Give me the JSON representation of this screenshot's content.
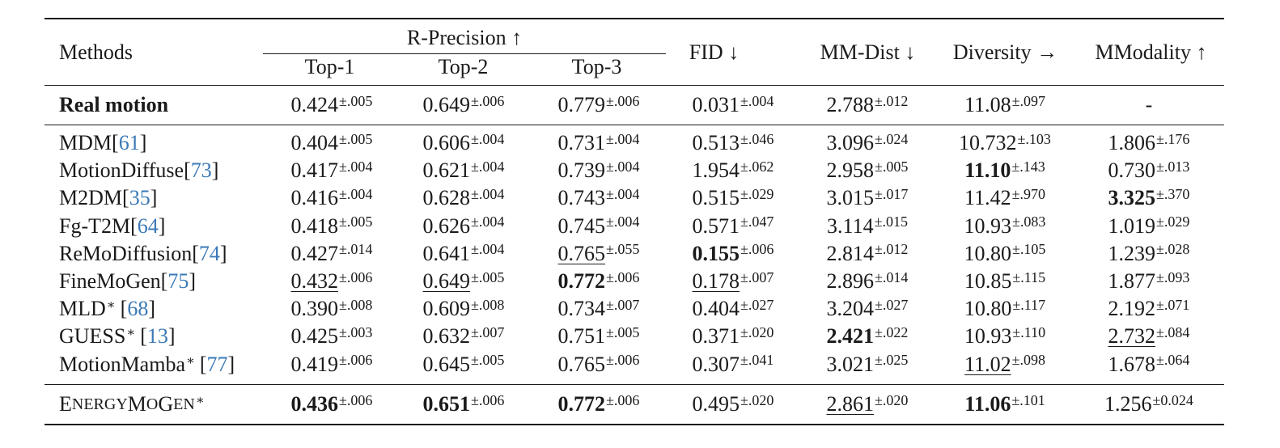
{
  "headers": {
    "methods": "Methods",
    "r_precision": "R-Precision ↑",
    "top1": "Top-1",
    "top2": "Top-2",
    "top3": "Top-3",
    "fid": "FID ↓",
    "mm_dist": "MM-Dist ↓",
    "diversity": "Diversity →",
    "mmodality": "MModality ↑"
  },
  "real_motion": {
    "name": "Real motion",
    "cells": [
      {
        "v": "0.424",
        "s": "±.005",
        "st": ""
      },
      {
        "v": "0.649",
        "s": "±.006",
        "st": ""
      },
      {
        "v": "0.779",
        "s": "±.006",
        "st": ""
      },
      {
        "v": "0.031",
        "s": "±.004",
        "st": ""
      },
      {
        "v": "2.788",
        "s": "±.012",
        "st": ""
      },
      {
        "v": "11.08",
        "s": "±.097",
        "st": ""
      },
      {
        "v": "-",
        "s": "",
        "st": ""
      }
    ]
  },
  "rows": [
    {
      "name": "MDM ",
      "ref": "61",
      "star": "",
      "cells": [
        {
          "v": "0.404",
          "s": "±.005",
          "st": ""
        },
        {
          "v": "0.606",
          "s": "±.004",
          "st": ""
        },
        {
          "v": "0.731",
          "s": "±.004",
          "st": ""
        },
        {
          "v": "0.513",
          "s": "±.046",
          "st": ""
        },
        {
          "v": "3.096",
          "s": "±.024",
          "st": ""
        },
        {
          "v": "10.732",
          "s": "±.103",
          "st": ""
        },
        {
          "v": "1.806",
          "s": "±.176",
          "st": ""
        }
      ]
    },
    {
      "name": "MotionDiffuse ",
      "ref": "73",
      "star": "",
      "cells": [
        {
          "v": "0.417",
          "s": "±.004",
          "st": ""
        },
        {
          "v": "0.621",
          "s": "±.004",
          "st": ""
        },
        {
          "v": "0.739",
          "s": "±.004",
          "st": ""
        },
        {
          "v": "1.954",
          "s": "±.062",
          "st": ""
        },
        {
          "v": "2.958",
          "s": "±.005",
          "st": ""
        },
        {
          "v": "11.10",
          "s": "±.143",
          "st": "b"
        },
        {
          "v": "0.730",
          "s": "±.013",
          "st": ""
        }
      ]
    },
    {
      "name": "M2DM ",
      "ref": "35",
      "star": "",
      "cells": [
        {
          "v": "0.416",
          "s": "±.004",
          "st": ""
        },
        {
          "v": "0.628",
          "s": "±.004",
          "st": ""
        },
        {
          "v": "0.743",
          "s": "±.004",
          "st": ""
        },
        {
          "v": "0.515",
          "s": "±.029",
          "st": ""
        },
        {
          "v": "3.015",
          "s": "±.017",
          "st": ""
        },
        {
          "v": "11.42",
          "s": "±.970",
          "st": ""
        },
        {
          "v": "3.325",
          "s": "±.370",
          "st": "b"
        }
      ]
    },
    {
      "name": "Fg-T2M ",
      "ref": "64",
      "star": "",
      "cells": [
        {
          "v": "0.418",
          "s": "±.005",
          "st": ""
        },
        {
          "v": "0.626",
          "s": "±.004",
          "st": ""
        },
        {
          "v": "0.745",
          "s": "±.004",
          "st": ""
        },
        {
          "v": "0.571",
          "s": "±.047",
          "st": ""
        },
        {
          "v": "3.114",
          "s": "±.015",
          "st": ""
        },
        {
          "v": "10.93",
          "s": "±.083",
          "st": ""
        },
        {
          "v": "1.019",
          "s": "±.029",
          "st": ""
        }
      ]
    },
    {
      "name": "ReMoDiffusion ",
      "ref": "74",
      "star": "",
      "cells": [
        {
          "v": "0.427",
          "s": "±.014",
          "st": ""
        },
        {
          "v": "0.641",
          "s": "±.004",
          "st": ""
        },
        {
          "v": "0.765",
          "s": "±.055",
          "st": "u"
        },
        {
          "v": "0.155",
          "s": "±.006",
          "st": "b"
        },
        {
          "v": "2.814",
          "s": "±.012",
          "st": ""
        },
        {
          "v": "10.80",
          "s": "±.105",
          "st": ""
        },
        {
          "v": "1.239",
          "s": "±.028",
          "st": ""
        }
      ]
    },
    {
      "name": "FineMoGen ",
      "ref": "75",
      "star": "",
      "cells": [
        {
          "v": "0.432",
          "s": "±.006",
          "st": "u"
        },
        {
          "v": "0.649",
          "s": "±.005",
          "st": "u"
        },
        {
          "v": "0.772",
          "s": "±.006",
          "st": "b"
        },
        {
          "v": "0.178",
          "s": "±.007",
          "st": "u"
        },
        {
          "v": "2.896",
          "s": "±.014",
          "st": ""
        },
        {
          "v": "10.85",
          "s": "±.115",
          "st": ""
        },
        {
          "v": "1.877",
          "s": "±.093",
          "st": ""
        }
      ]
    },
    {
      "name": "MLD",
      "ref": "68",
      "star": "∗",
      "cells": [
        {
          "v": "0.390",
          "s": "±.008",
          "st": ""
        },
        {
          "v": "0.609",
          "s": "±.008",
          "st": ""
        },
        {
          "v": "0.734",
          "s": "±.007",
          "st": ""
        },
        {
          "v": "0.404",
          "s": "±.027",
          "st": ""
        },
        {
          "v": "3.204",
          "s": "±.027",
          "st": ""
        },
        {
          "v": "10.80",
          "s": "±.117",
          "st": ""
        },
        {
          "v": "2.192",
          "s": "±.071",
          "st": ""
        }
      ]
    },
    {
      "name": "GUESS",
      "ref": "13",
      "star": "∗",
      "cells": [
        {
          "v": "0.425",
          "s": "±.003",
          "st": ""
        },
        {
          "v": "0.632",
          "s": "±.007",
          "st": ""
        },
        {
          "v": "0.751",
          "s": "±.005",
          "st": ""
        },
        {
          "v": "0.371",
          "s": "±.020",
          "st": ""
        },
        {
          "v": "2.421",
          "s": "±.022",
          "st": "b"
        },
        {
          "v": "10.93",
          "s": "±.110",
          "st": ""
        },
        {
          "v": "2.732",
          "s": "±.084",
          "st": "u"
        }
      ]
    },
    {
      "name": "MotionMamba",
      "ref": "77",
      "star": "∗",
      "cells": [
        {
          "v": "0.419",
          "s": "±.006",
          "st": ""
        },
        {
          "v": "0.645",
          "s": "±.005",
          "st": ""
        },
        {
          "v": "0.765",
          "s": "±.006",
          "st": ""
        },
        {
          "v": "0.307",
          "s": "±.041",
          "st": ""
        },
        {
          "v": "3.021",
          "s": "±.025",
          "st": ""
        },
        {
          "v": "11.02",
          "s": "±.098",
          "st": "u"
        },
        {
          "v": "1.678",
          "s": "±.064",
          "st": ""
        }
      ]
    }
  ],
  "ours": {
    "name_e": "E",
    "name_nergy": "NERGY",
    "name_m": "M",
    "name_o": "O",
    "name_g": "G",
    "name_en": "EN",
    "star": "∗",
    "cells": [
      {
        "v": "0.436",
        "s": "±.006",
        "st": "b"
      },
      {
        "v": "0.651",
        "s": "±.006",
        "st": "b"
      },
      {
        "v": "0.772",
        "s": "±.006",
        "st": "b"
      },
      {
        "v": "0.495",
        "s": "±.020",
        "st": ""
      },
      {
        "v": "2.861",
        "s": "±.020",
        "st": "u"
      },
      {
        "v": "11.06",
        "s": "±.101",
        "st": "b"
      },
      {
        "v": "1.256",
        "s": "±0.024",
        "st": ""
      }
    ]
  }
}
